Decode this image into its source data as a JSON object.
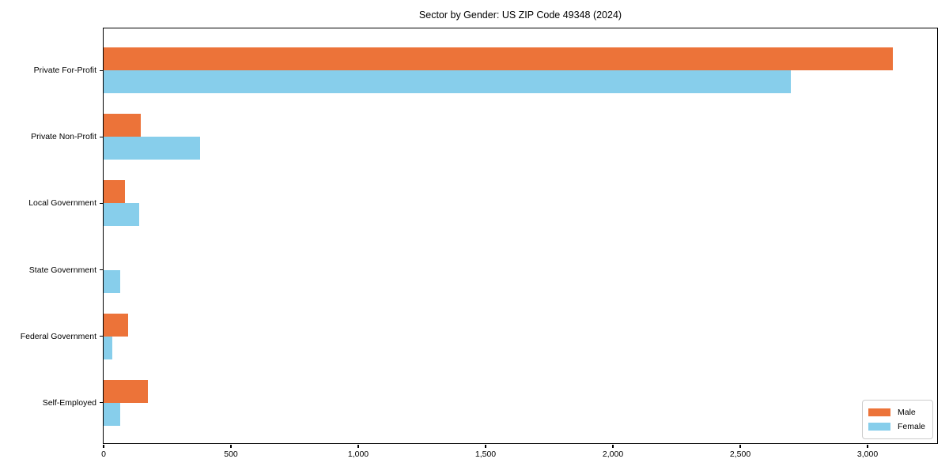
{
  "chart_data": {
    "type": "bar",
    "orientation": "horizontal",
    "title": "Sector by Gender: US ZIP Code 49348 (2024)",
    "categories": [
      "Private For-Profit",
      "Private Non-Profit",
      "Local Government",
      "State Government",
      "Federal Government",
      "Self-Employed"
    ],
    "series": [
      {
        "name": "Male",
        "color": "#EC7339",
        "values": [
          3100,
          145,
          85,
          0,
          95,
          175
        ]
      },
      {
        "name": "Female",
        "color": "#87CEEB",
        "values": [
          2700,
          380,
          140,
          65,
          35,
          65
        ]
      }
    ],
    "xlabel": "",
    "ylabel": "",
    "xlim": [
      0,
      3270
    ],
    "xticks": [
      0,
      500,
      1000,
      1500,
      2000,
      2500,
      3000
    ],
    "xtick_labels": [
      "0",
      "500",
      "1,000",
      "1,500",
      "2,000",
      "2,500",
      "3,000"
    ],
    "grid": false,
    "legend_position": "lower right",
    "legend_title": ""
  }
}
